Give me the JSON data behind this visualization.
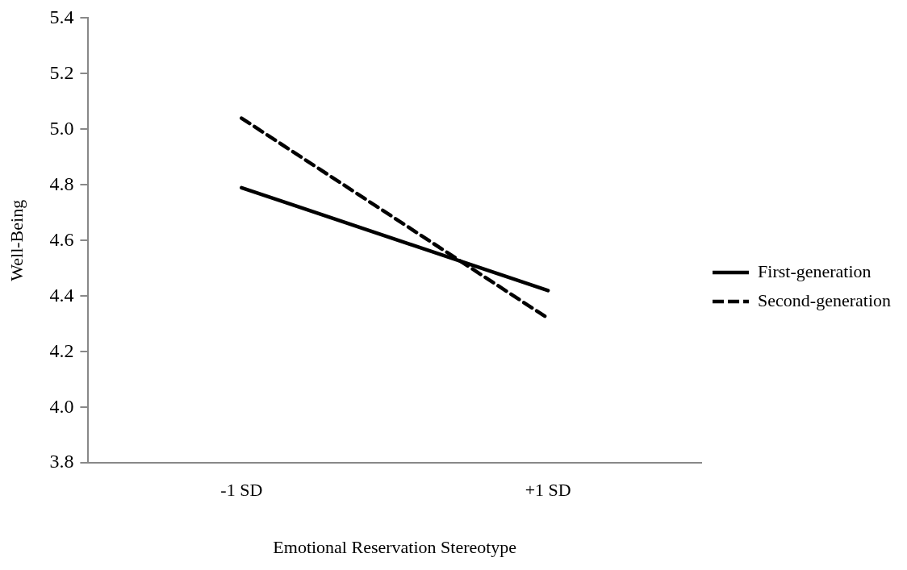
{
  "chart_data": {
    "type": "line",
    "xlabel": "Emotional Reservation Stereotype",
    "ylabel": "Well-Being",
    "categories": [
      "-1 SD",
      "+1 SD"
    ],
    "series": [
      {
        "name": "First-generation",
        "color": "#000000",
        "values": [
          4.79,
          4.42
        ],
        "line_style": "solid"
      },
      {
        "name": "Second-generation",
        "color": "#000000",
        "values": [
          5.04,
          4.32
        ],
        "line_style": "dashed"
      }
    ],
    "ylim": [
      3.8,
      5.4
    ],
    "yticks": [
      {
        "value": 3.8,
        "label": "3.8"
      },
      {
        "value": 4,
        "label": "4.0"
      },
      {
        "value": 4.2,
        "label": "4.2"
      },
      {
        "value": 4.4,
        "label": "4.4"
      },
      {
        "value": 4.6,
        "label": "4.6"
      },
      {
        "value": 4.8,
        "label": "4.8"
      },
      {
        "value": 5,
        "label": "5.0"
      },
      {
        "value": 5.2,
        "label": "5.2"
      },
      {
        "value": 5.4,
        "label": "5.4"
      }
    ],
    "grid": false,
    "legend": "right",
    "marker": "none"
  }
}
